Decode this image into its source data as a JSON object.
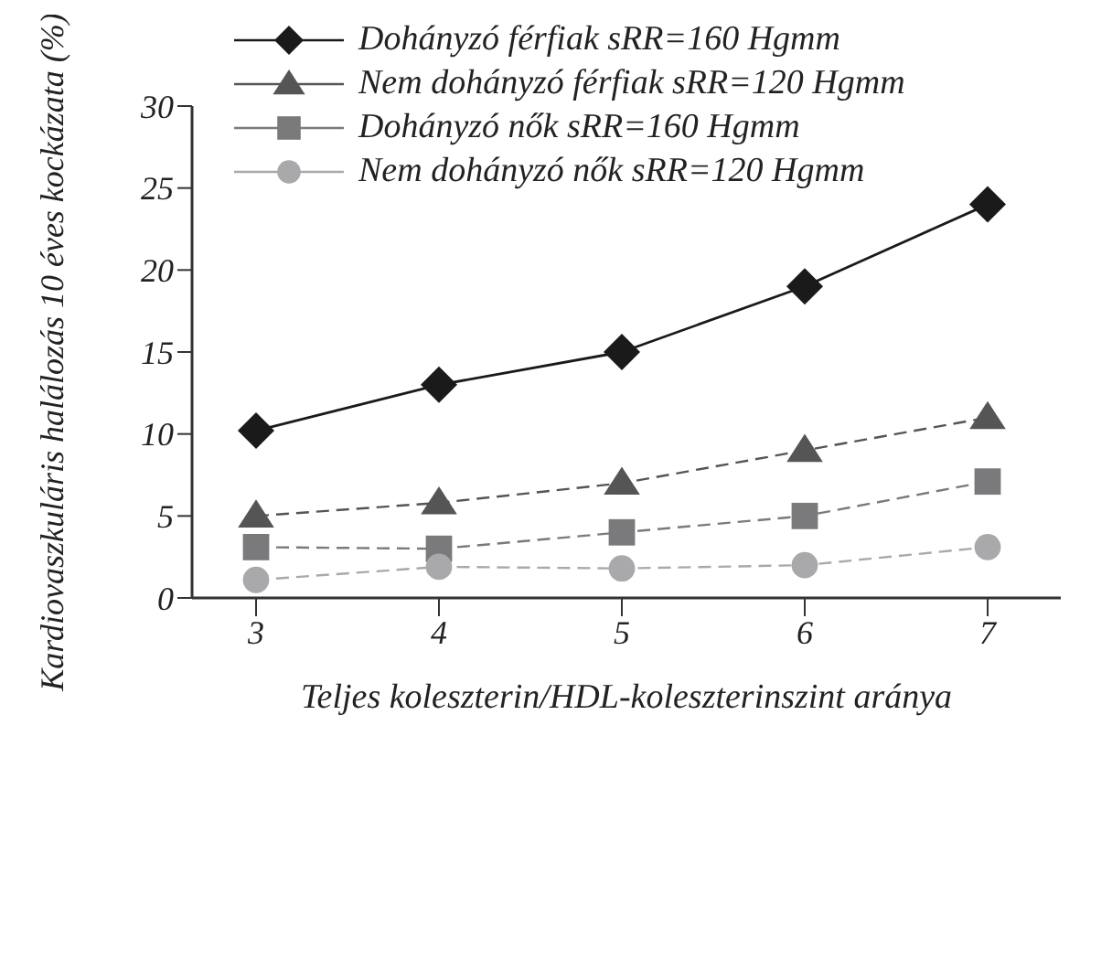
{
  "chart_data": {
    "type": "line",
    "xlabel": "Teljes koleszterin/HDL-koleszterinszint aránya",
    "ylabel": "Kardiovaszkuláris halálozás 10 éves kockázata (%)",
    "x": [
      3,
      4,
      5,
      6,
      7
    ],
    "xlim": [
      2.65,
      7.4
    ],
    "xticks": [
      3,
      4,
      5,
      6,
      7
    ],
    "ylim": [
      0,
      30
    ],
    "yticks": [
      0,
      5,
      10,
      15,
      20,
      25,
      30
    ],
    "legend": "top",
    "series": [
      {
        "name": "Dohányzó férfiak sRR=160 Hgmm",
        "color": "#1a1a1a",
        "marker": "diamond",
        "line_style": "solid",
        "values": [
          10.2,
          13,
          15,
          19,
          24
        ]
      },
      {
        "name": "Nem dohányzó férfiak sRR=120 Hgmm",
        "color": "#555555",
        "marker": "triangle",
        "line_style": "dashed",
        "values": [
          5,
          5.8,
          7,
          9,
          11
        ]
      },
      {
        "name": "Dohányzó nők sRR=160 Hgmm",
        "color": "#7a7a7c",
        "marker": "square",
        "line_style": "dashed",
        "values": [
          3.1,
          3,
          4,
          5,
          7.1
        ]
      },
      {
        "name": "Nem dohányzó nők sRR=120 Hgmm",
        "color": "#a9a9ab",
        "marker": "circle",
        "line_style": "dashed",
        "values": [
          1.1,
          1.9,
          1.8,
          2,
          3.1
        ]
      }
    ]
  }
}
